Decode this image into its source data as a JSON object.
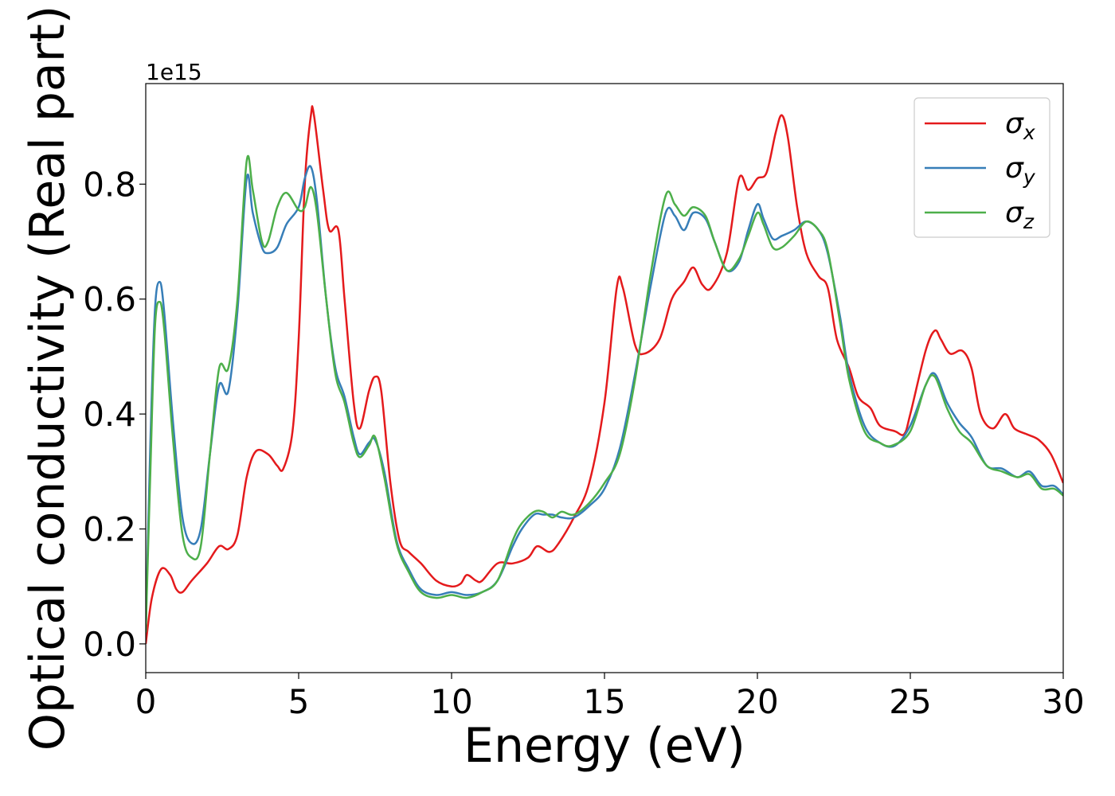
{
  "chart_data": {
    "type": "line",
    "title": "",
    "xlabel": "Energy (eV)",
    "ylabel": "Optical conductivity (Real part)",
    "offset_text": "1e15",
    "xlim": [
      0,
      30
    ],
    "ylim": [
      -0.05,
      0.975
    ],
    "xticks": [
      0,
      5,
      10,
      15,
      20,
      25,
      30
    ],
    "yticks": [
      0.0,
      0.2,
      0.4,
      0.6,
      0.8
    ],
    "xtick_labels": [
      "0",
      "5",
      "10",
      "15",
      "20",
      "25",
      "30"
    ],
    "ytick_labels": [
      "0.0",
      "0.2",
      "0.4",
      "0.6",
      "0.8"
    ],
    "grid": false,
    "legend_position": "top-right",
    "series": [
      {
        "name": "σ",
        "subscript": "x",
        "color": "#e41a1c",
        "points": [
          [
            0,
            0.0
          ],
          [
            0.2,
            0.08
          ],
          [
            0.5,
            0.13
          ],
          [
            0.8,
            0.12
          ],
          [
            1.0,
            0.095
          ],
          [
            1.2,
            0.09
          ],
          [
            1.5,
            0.11
          ],
          [
            2.0,
            0.14
          ],
          [
            2.4,
            0.17
          ],
          [
            2.7,
            0.165
          ],
          [
            3.0,
            0.19
          ],
          [
            3.3,
            0.29
          ],
          [
            3.6,
            0.335
          ],
          [
            4.0,
            0.33
          ],
          [
            4.3,
            0.31
          ],
          [
            4.5,
            0.305
          ],
          [
            4.8,
            0.37
          ],
          [
            5.0,
            0.53
          ],
          [
            5.2,
            0.8
          ],
          [
            5.4,
            0.92
          ],
          [
            5.5,
            0.92
          ],
          [
            5.8,
            0.79
          ],
          [
            6.0,
            0.72
          ],
          [
            6.3,
            0.72
          ],
          [
            6.5,
            0.6
          ],
          [
            6.8,
            0.42
          ],
          [
            7.0,
            0.375
          ],
          [
            7.3,
            0.44
          ],
          [
            7.5,
            0.465
          ],
          [
            7.7,
            0.44
          ],
          [
            8.0,
            0.28
          ],
          [
            8.3,
            0.18
          ],
          [
            8.6,
            0.16
          ],
          [
            9.0,
            0.14
          ],
          [
            9.5,
            0.11
          ],
          [
            10.0,
            0.1
          ],
          [
            10.3,
            0.105
          ],
          [
            10.5,
            0.12
          ],
          [
            10.8,
            0.11
          ],
          [
            11.0,
            0.11
          ],
          [
            11.5,
            0.14
          ],
          [
            12.0,
            0.14
          ],
          [
            12.5,
            0.15
          ],
          [
            12.8,
            0.17
          ],
          [
            13.2,
            0.16
          ],
          [
            13.5,
            0.175
          ],
          [
            14.0,
            0.22
          ],
          [
            14.5,
            0.28
          ],
          [
            15.0,
            0.42
          ],
          [
            15.4,
            0.62
          ],
          [
            15.6,
            0.62
          ],
          [
            16.0,
            0.52
          ],
          [
            16.3,
            0.505
          ],
          [
            16.8,
            0.53
          ],
          [
            17.2,
            0.6
          ],
          [
            17.6,
            0.63
          ],
          [
            17.9,
            0.655
          ],
          [
            18.2,
            0.625
          ],
          [
            18.5,
            0.62
          ],
          [
            19.0,
            0.68
          ],
          [
            19.4,
            0.81
          ],
          [
            19.7,
            0.79
          ],
          [
            20.0,
            0.81
          ],
          [
            20.3,
            0.82
          ],
          [
            20.6,
            0.89
          ],
          [
            20.8,
            0.92
          ],
          [
            21.0,
            0.88
          ],
          [
            21.3,
            0.76
          ],
          [
            21.6,
            0.68
          ],
          [
            22.0,
            0.64
          ],
          [
            22.3,
            0.62
          ],
          [
            22.6,
            0.53
          ],
          [
            23.0,
            0.48
          ],
          [
            23.3,
            0.43
          ],
          [
            23.7,
            0.41
          ],
          [
            24.0,
            0.38
          ],
          [
            24.5,
            0.37
          ],
          [
            24.8,
            0.365
          ],
          [
            25.0,
            0.4
          ],
          [
            25.5,
            0.51
          ],
          [
            25.8,
            0.545
          ],
          [
            26.0,
            0.53
          ],
          [
            26.3,
            0.505
          ],
          [
            26.7,
            0.51
          ],
          [
            27.0,
            0.48
          ],
          [
            27.3,
            0.4
          ],
          [
            27.7,
            0.375
          ],
          [
            28.1,
            0.4
          ],
          [
            28.4,
            0.375
          ],
          [
            28.8,
            0.365
          ],
          [
            29.2,
            0.355
          ],
          [
            29.6,
            0.33
          ],
          [
            30.0,
            0.28
          ]
        ]
      },
      {
        "name": "σ",
        "subscript": "y",
        "color": "#377eb8",
        "points": [
          [
            0,
            0.02
          ],
          [
            0.15,
            0.35
          ],
          [
            0.3,
            0.58
          ],
          [
            0.45,
            0.63
          ],
          [
            0.6,
            0.58
          ],
          [
            0.9,
            0.38
          ],
          [
            1.2,
            0.22
          ],
          [
            1.5,
            0.175
          ],
          [
            1.8,
            0.2
          ],
          [
            2.1,
            0.33
          ],
          [
            2.4,
            0.45
          ],
          [
            2.7,
            0.44
          ],
          [
            3.0,
            0.58
          ],
          [
            3.3,
            0.81
          ],
          [
            3.5,
            0.75
          ],
          [
            3.8,
            0.69
          ],
          [
            4.0,
            0.68
          ],
          [
            4.3,
            0.69
          ],
          [
            4.6,
            0.73
          ],
          [
            5.0,
            0.76
          ],
          [
            5.2,
            0.81
          ],
          [
            5.4,
            0.83
          ],
          [
            5.6,
            0.77
          ],
          [
            5.9,
            0.6
          ],
          [
            6.2,
            0.48
          ],
          [
            6.5,
            0.43
          ],
          [
            6.8,
            0.36
          ],
          [
            7.0,
            0.33
          ],
          [
            7.3,
            0.35
          ],
          [
            7.5,
            0.355
          ],
          [
            7.8,
            0.3
          ],
          [
            8.2,
            0.18
          ],
          [
            8.6,
            0.13
          ],
          [
            9.0,
            0.095
          ],
          [
            9.5,
            0.085
          ],
          [
            10.0,
            0.09
          ],
          [
            10.5,
            0.085
          ],
          [
            11.0,
            0.09
          ],
          [
            11.5,
            0.11
          ],
          [
            12.0,
            0.17
          ],
          [
            12.3,
            0.2
          ],
          [
            12.7,
            0.225
          ],
          [
            13.0,
            0.225
          ],
          [
            13.3,
            0.225
          ],
          [
            13.6,
            0.22
          ],
          [
            14.0,
            0.22
          ],
          [
            14.5,
            0.24
          ],
          [
            15.0,
            0.27
          ],
          [
            15.5,
            0.34
          ],
          [
            16.0,
            0.47
          ],
          [
            16.5,
            0.62
          ],
          [
            17.0,
            0.75
          ],
          [
            17.3,
            0.745
          ],
          [
            17.6,
            0.72
          ],
          [
            17.9,
            0.75
          ],
          [
            18.3,
            0.74
          ],
          [
            18.6,
            0.7
          ],
          [
            19.0,
            0.65
          ],
          [
            19.4,
            0.665
          ],
          [
            19.7,
            0.72
          ],
          [
            20.0,
            0.765
          ],
          [
            20.2,
            0.74
          ],
          [
            20.5,
            0.705
          ],
          [
            20.8,
            0.71
          ],
          [
            21.2,
            0.72
          ],
          [
            21.6,
            0.735
          ],
          [
            22.0,
            0.72
          ],
          [
            22.3,
            0.68
          ],
          [
            22.7,
            0.57
          ],
          [
            23.0,
            0.47
          ],
          [
            23.5,
            0.38
          ],
          [
            24.0,
            0.35
          ],
          [
            24.5,
            0.345
          ],
          [
            25.0,
            0.38
          ],
          [
            25.5,
            0.45
          ],
          [
            25.8,
            0.47
          ],
          [
            26.2,
            0.42
          ],
          [
            26.6,
            0.385
          ],
          [
            27.0,
            0.36
          ],
          [
            27.5,
            0.31
          ],
          [
            28.0,
            0.305
          ],
          [
            28.5,
            0.29
          ],
          [
            28.9,
            0.3
          ],
          [
            29.3,
            0.275
          ],
          [
            29.7,
            0.275
          ],
          [
            30.0,
            0.26
          ]
        ]
      },
      {
        "name": "σ",
        "subscript": "z",
        "color": "#4daf4a",
        "points": [
          [
            0,
            0.02
          ],
          [
            0.15,
            0.3
          ],
          [
            0.3,
            0.55
          ],
          [
            0.45,
            0.595
          ],
          [
            0.6,
            0.55
          ],
          [
            0.9,
            0.35
          ],
          [
            1.2,
            0.19
          ],
          [
            1.5,
            0.15
          ],
          [
            1.8,
            0.17
          ],
          [
            2.1,
            0.33
          ],
          [
            2.4,
            0.48
          ],
          [
            2.7,
            0.48
          ],
          [
            3.0,
            0.6
          ],
          [
            3.3,
            0.84
          ],
          [
            3.5,
            0.79
          ],
          [
            3.8,
            0.7
          ],
          [
            4.0,
            0.7
          ],
          [
            4.3,
            0.76
          ],
          [
            4.6,
            0.785
          ],
          [
            5.0,
            0.755
          ],
          [
            5.2,
            0.76
          ],
          [
            5.4,
            0.795
          ],
          [
            5.6,
            0.75
          ],
          [
            5.9,
            0.6
          ],
          [
            6.2,
            0.47
          ],
          [
            6.5,
            0.42
          ],
          [
            6.8,
            0.35
          ],
          [
            7.0,
            0.325
          ],
          [
            7.3,
            0.345
          ],
          [
            7.5,
            0.36
          ],
          [
            7.8,
            0.29
          ],
          [
            8.2,
            0.175
          ],
          [
            8.6,
            0.125
          ],
          [
            9.0,
            0.09
          ],
          [
            9.5,
            0.08
          ],
          [
            10.0,
            0.085
          ],
          [
            10.5,
            0.08
          ],
          [
            11.0,
            0.09
          ],
          [
            11.5,
            0.11
          ],
          [
            12.0,
            0.18
          ],
          [
            12.3,
            0.21
          ],
          [
            12.7,
            0.23
          ],
          [
            13.0,
            0.23
          ],
          [
            13.3,
            0.22
          ],
          [
            13.6,
            0.23
          ],
          [
            14.0,
            0.225
          ],
          [
            14.5,
            0.245
          ],
          [
            15.0,
            0.28
          ],
          [
            15.5,
            0.33
          ],
          [
            16.0,
            0.46
          ],
          [
            16.5,
            0.64
          ],
          [
            17.0,
            0.78
          ],
          [
            17.3,
            0.765
          ],
          [
            17.6,
            0.745
          ],
          [
            17.9,
            0.76
          ],
          [
            18.3,
            0.745
          ],
          [
            18.6,
            0.7
          ],
          [
            19.0,
            0.65
          ],
          [
            19.4,
            0.67
          ],
          [
            19.7,
            0.71
          ],
          [
            20.0,
            0.75
          ],
          [
            20.2,
            0.73
          ],
          [
            20.5,
            0.69
          ],
          [
            20.8,
            0.69
          ],
          [
            21.2,
            0.71
          ],
          [
            21.6,
            0.735
          ],
          [
            22.0,
            0.72
          ],
          [
            22.3,
            0.685
          ],
          [
            22.7,
            0.56
          ],
          [
            23.0,
            0.46
          ],
          [
            23.5,
            0.37
          ],
          [
            24.0,
            0.35
          ],
          [
            24.4,
            0.345
          ],
          [
            25.0,
            0.37
          ],
          [
            25.5,
            0.45
          ],
          [
            25.8,
            0.465
          ],
          [
            26.2,
            0.41
          ],
          [
            26.6,
            0.37
          ],
          [
            27.0,
            0.35
          ],
          [
            27.5,
            0.31
          ],
          [
            28.0,
            0.3
          ],
          [
            28.5,
            0.29
          ],
          [
            28.9,
            0.295
          ],
          [
            29.3,
            0.27
          ],
          [
            29.7,
            0.27
          ],
          [
            30.0,
            0.258
          ]
        ]
      }
    ]
  }
}
